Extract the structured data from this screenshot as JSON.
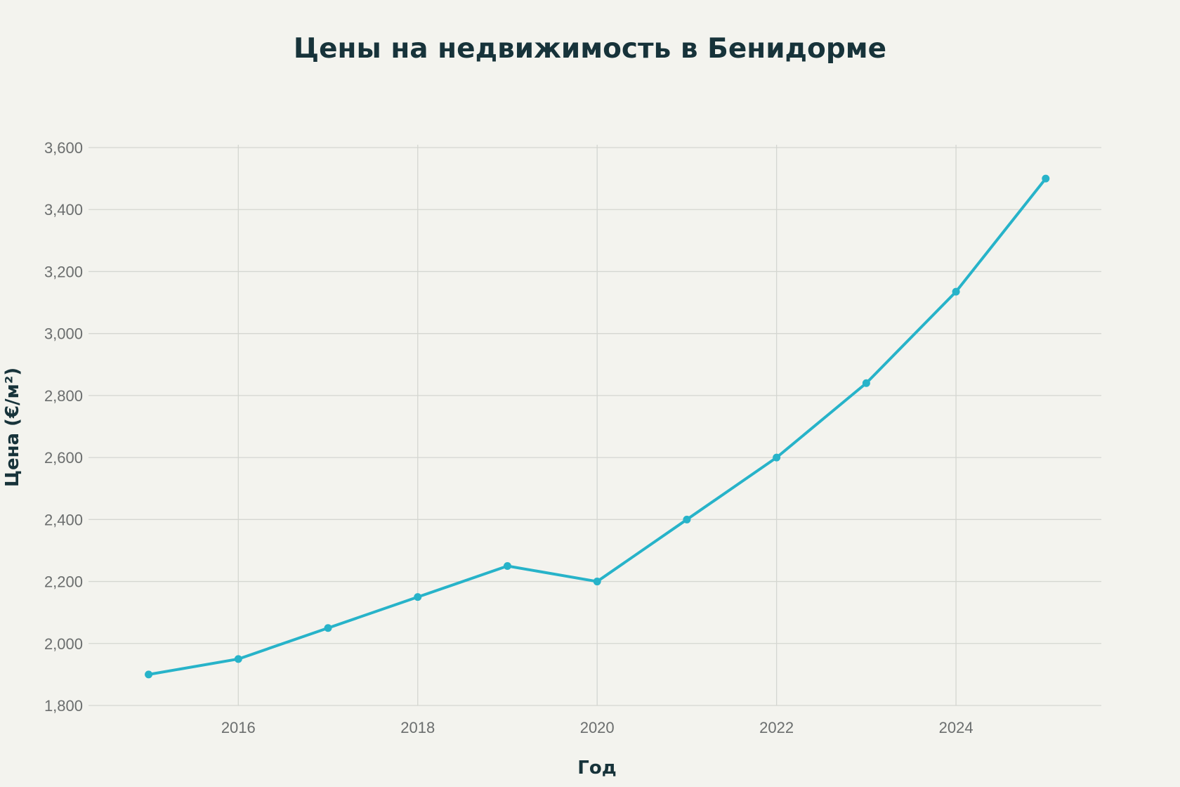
{
  "chart_data": {
    "type": "line",
    "title": "Цены на недвижимость в Бенидорме",
    "xlabel": "Год",
    "ylabel": "Цена (€/м²)",
    "x": [
      2015,
      2016,
      2017,
      2018,
      2019,
      2020,
      2021,
      2022,
      2023,
      2024,
      2025
    ],
    "series": [
      {
        "values": [
          1900,
          1950,
          2050,
          2150,
          2250,
          2200,
          2400,
          2600,
          2840,
          3135,
          3500
        ]
      }
    ],
    "xlim": [
      2014.33,
      2025.62
    ],
    "ylim": [
      1800,
      3600
    ],
    "x_ticks": [
      2016,
      2018,
      2020,
      2022,
      2024
    ],
    "y_ticks": [
      1800,
      2000,
      2200,
      2400,
      2600,
      2800,
      3000,
      3200,
      3400,
      3600
    ],
    "x_tick_labels": [
      "2016",
      "2018",
      "2020",
      "2022",
      "2024"
    ],
    "y_tick_labels": [
      "1,800",
      "2,000",
      "2,200",
      "2,400",
      "2,600",
      "2,800",
      "3,000",
      "3,200",
      "3,400",
      "3,600"
    ],
    "grid": true,
    "legend": "none",
    "colors": {
      "line": "#27b3c9",
      "background": "#f3f3ee",
      "grid": "#d4d6d1",
      "title": "#17333a",
      "ticks": "#6b6e6e"
    }
  }
}
